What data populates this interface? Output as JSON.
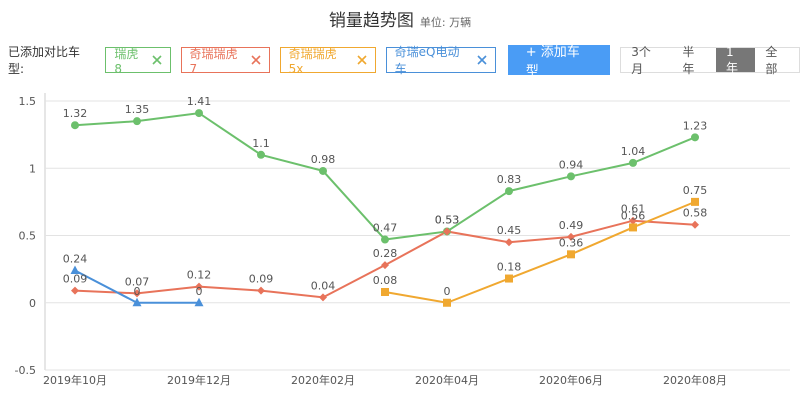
{
  "filters": {
    "label": "已添加对比车型:",
    "add_button": "+ 添加车型",
    "periods": [
      "3个月",
      "半年",
      "1年",
      "全部"
    ],
    "active_period": "1年"
  },
  "chart_data": {
    "type": "line",
    "title": "销量趋势图",
    "unit": "单位: 万辆",
    "categories": [
      "2019年10月",
      null,
      "2019年12月",
      null,
      "2020年02月",
      null,
      "2020年04月",
      null,
      "2020年06月",
      null,
      "2020年08月"
    ],
    "ylim": [
      -0.5,
      1.5
    ],
    "yticks": [
      -0.5,
      0,
      0.5,
      1,
      1.5
    ],
    "grid": true,
    "series": [
      {
        "name": "瑞虎8",
        "color": "#6cc06c",
        "marker": "circle",
        "values": [
          1.32,
          1.35,
          1.41,
          1.1,
          0.98,
          0.47,
          0.53,
          0.83,
          0.94,
          1.04,
          1.23
        ]
      },
      {
        "name": "奇瑞瑞虎7",
        "color": "#e8735a",
        "marker": "diamond",
        "values": [
          0.09,
          0.07,
          0.12,
          0.09,
          0.04,
          0.28,
          0.53,
          0.45,
          0.49,
          0.61,
          0.58
        ]
      },
      {
        "name": "奇瑞瑞虎5x",
        "color": "#f0a830",
        "marker": "square",
        "values": [
          null,
          null,
          null,
          null,
          null,
          0.08,
          0,
          0.18,
          0.36,
          0.56,
          0.75
        ]
      },
      {
        "name": "奇瑞eQ电动车",
        "color": "#4a90d9",
        "marker": "triangle",
        "values": [
          0.24,
          0,
          0,
          null,
          null,
          null,
          null,
          null,
          null,
          null,
          null
        ]
      }
    ]
  }
}
